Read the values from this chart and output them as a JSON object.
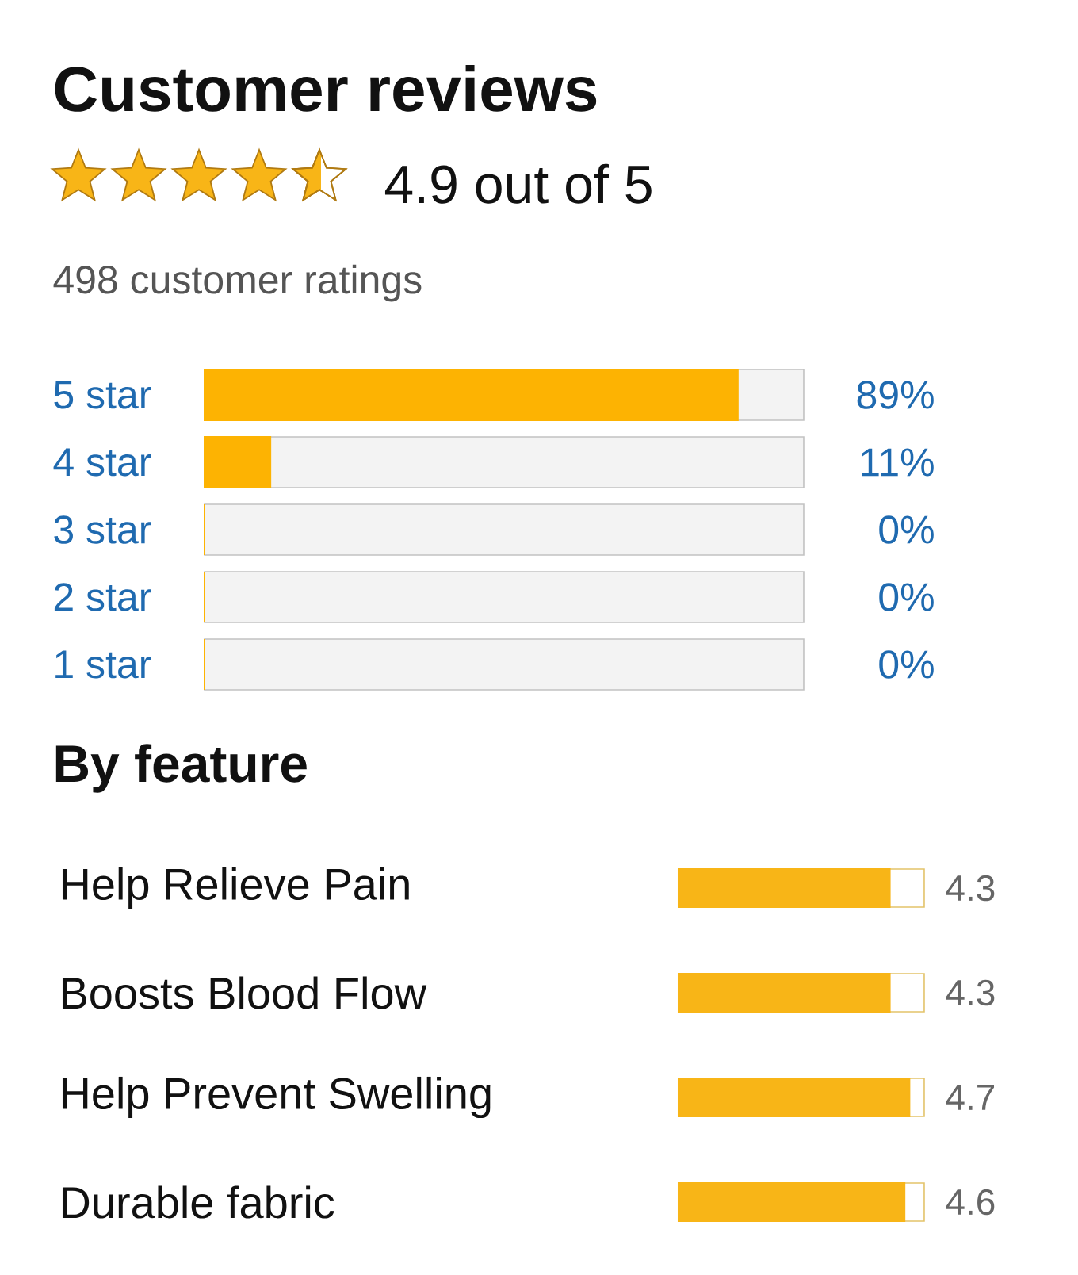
{
  "chart_data": [
    {
      "type": "bar",
      "orientation": "horizontal",
      "title": "Customer reviews",
      "subtitle": "4.9 out of 5",
      "annotations": [
        "498 customer ratings"
      ],
      "categories": [
        "5 star",
        "4 star",
        "3 star",
        "2 star",
        "1 star"
      ],
      "values": [
        89,
        11,
        0,
        0,
        0
      ],
      "color": "#fdb302",
      "xlim": [
        0,
        100
      ],
      "value_labels": [
        "89%",
        "11%",
        "0%",
        "0%",
        "0%"
      ],
      "tick_labels": "y"
    },
    {
      "type": "bar",
      "orientation": "horizontal",
      "title": "By feature",
      "categories": [
        "Help Relieve Pain",
        "Boosts Blood Flow",
        "Help Prevent Swelling",
        "Durable fabric"
      ],
      "values": [
        4.3,
        4.3,
        4.7,
        4.6
      ],
      "color": "#f8b517",
      "xlim": [
        0,
        5
      ],
      "data_labels": true,
      "tick_labels": "y"
    }
  ]
}
